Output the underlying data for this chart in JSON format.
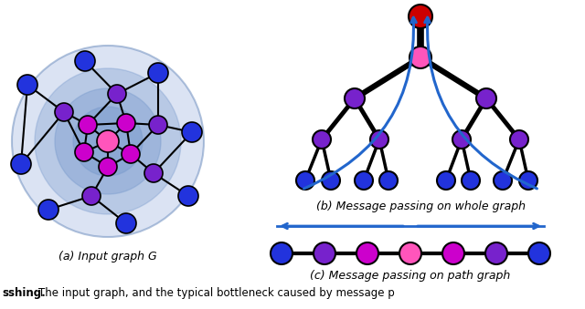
{
  "bg_color": "#ffffff",
  "title_a": "(a) Input graph G",
  "title_b": "(b) Message passing on whole graph",
  "title_c": "(c) Message passing on path graph",
  "node_colors": {
    "red": "#cc0000",
    "hot_pink": "#ff55bb",
    "magenta": "#cc00cc",
    "purple": "#7722cc",
    "blue_purple": "#4433bb",
    "blue": "#2233dd",
    "dark_blue": "#1122aa"
  },
  "font_size": 9
}
